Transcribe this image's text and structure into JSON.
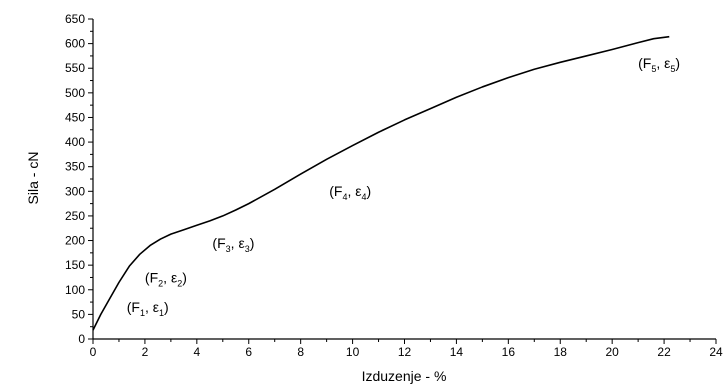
{
  "chart_data": {
    "type": "line",
    "title": "",
    "xlabel": "Izduzenje - %",
    "ylabel": "Sila - cN",
    "xlim": [
      0,
      24
    ],
    "ylim": [
      0,
      650
    ],
    "xticks": [
      0,
      2,
      4,
      6,
      8,
      10,
      12,
      14,
      16,
      18,
      20,
      22,
      24
    ],
    "yticks": [
      0,
      50,
      100,
      150,
      200,
      250,
      300,
      350,
      400,
      450,
      500,
      550,
      600,
      650
    ],
    "grid": false,
    "series": [
      {
        "x": [
          0,
          0.3,
          0.6,
          1.0,
          1.4,
          1.8,
          2.2,
          2.6,
          3.0,
          3.5,
          4.0,
          4.5,
          5.0,
          5.5,
          6.0,
          7.0,
          8.0,
          9.0,
          10.0,
          11.0,
          12.0,
          13.0,
          14.0,
          15.0,
          16.0,
          17.0,
          18.0,
          19.0,
          20.0,
          21.0,
          21.6,
          22.2
        ],
        "y": [
          18,
          50,
          78,
          115,
          148,
          172,
          190,
          203,
          213,
          222,
          231,
          240,
          250,
          262,
          275,
          304,
          335,
          365,
          393,
          420,
          445,
          468,
          491,
          512,
          531,
          548,
          562,
          575,
          588,
          602,
          610,
          614
        ]
      }
    ],
    "annotations": [
      {
        "F": "F",
        "Fsub": "1",
        "e": "ε",
        "esub": "1",
        "x": 1.3,
        "y": 55
      },
      {
        "F": "F",
        "Fsub": "2",
        "e": "ε",
        "esub": "2",
        "x": 2.0,
        "y": 115
      },
      {
        "F": "F",
        "Fsub": "3",
        "e": "ε",
        "esub": "3",
        "x": 4.6,
        "y": 185
      },
      {
        "F": "F",
        "Fsub": "4",
        "e": "ε",
        "esub": "4",
        "x": 9.1,
        "y": 290
      },
      {
        "F": "F",
        "Fsub": "5",
        "e": "ε",
        "esub": "5",
        "x": 21.0,
        "y": 550
      }
    ]
  }
}
